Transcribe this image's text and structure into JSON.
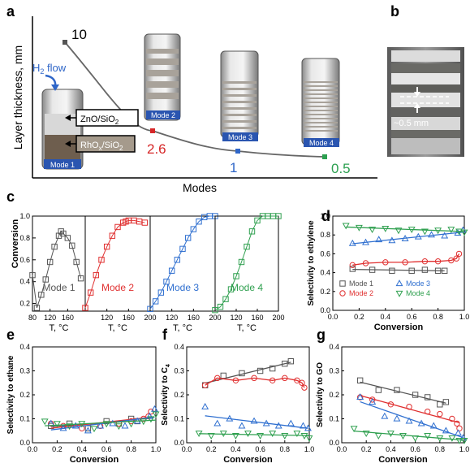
{
  "panels": {
    "a": "a",
    "b": "b",
    "c": "c",
    "d": "d",
    "e": "e",
    "f": "f",
    "g": "g"
  },
  "panel_a": {
    "ylabel": "Layer thickness, mm",
    "xlabel": "Modes",
    "h2_label": "H",
    "h2_sub": "2",
    "h2_rest": " flow",
    "zno_label": "ZnO/SiO",
    "zno_sub": "2",
    "rho_label": "RhO",
    "rho_sub": "x",
    "rho_rest": "/SiO",
    "rho_sub2": "2",
    "mode_tags": [
      "Mode 1",
      "Mode 2",
      "Mode 3",
      "Mode 4"
    ],
    "thickness_labels": [
      "10",
      "2.6",
      "1",
      "0.5"
    ],
    "thickness_colors": [
      "#555555",
      "#d62728",
      "#2f66c8",
      "#2ca050"
    ]
  },
  "panel_b": {
    "scale_label": "~0.5 mm"
  },
  "colors": {
    "mode1": "#555555",
    "mode2": "#e03030",
    "mode3": "#3070d0",
    "mode4": "#30a050"
  },
  "panel_c": {
    "ylabel": "Conversion",
    "xlabel": "T, °C",
    "yticks": [
      "0.2",
      "0.4",
      "0.6",
      "0.8",
      "1.0"
    ],
    "xticks": [
      "80",
      "120",
      "160",
      "200"
    ],
    "mode_labels": [
      "Mode 1",
      "Mode 2",
      "Mode 3",
      "Mode 4"
    ]
  },
  "legend": [
    "Mode 1",
    "Mode 2",
    "Mode 3",
    "Mode 4"
  ],
  "chart_data": [
    {
      "type": "line",
      "panel": "a",
      "ylabel": "Layer thickness, mm",
      "xlabel": "Modes",
      "categories": [
        "Mode 1",
        "Mode 2",
        "Mode 3",
        "Mode 4"
      ],
      "values": [
        10,
        2.6,
        1,
        0.5
      ]
    },
    {
      "type": "scatter",
      "panel": "c",
      "ylabel": "Conversion",
      "xlabel": "T, °C",
      "xlim": [
        80,
        200
      ],
      "ylim": [
        0.13,
        1.0
      ],
      "series": [
        {
          "name": "Mode 1",
          "x": [
            80,
            90,
            100,
            110,
            120,
            130,
            140,
            145,
            150,
            160,
            170,
            180,
            190
          ],
          "y": [
            0.46,
            0.16,
            0.28,
            0.42,
            0.58,
            0.72,
            0.82,
            0.86,
            0.84,
            0.8,
            0.73,
            0.58,
            0.43
          ]
        },
        {
          "name": "Mode 2",
          "x": [
            80,
            90,
            100,
            110,
            120,
            130,
            140,
            150,
            155,
            160,
            170,
            180,
            190
          ],
          "y": [
            0.16,
            0.3,
            0.46,
            0.6,
            0.72,
            0.82,
            0.9,
            0.94,
            0.95,
            0.96,
            0.96,
            0.95,
            0.94
          ]
        },
        {
          "name": "Mode 3",
          "x": [
            80,
            90,
            100,
            110,
            120,
            130,
            140,
            150,
            160,
            170,
            180,
            190,
            200
          ],
          "y": [
            0.15,
            0.22,
            0.3,
            0.4,
            0.5,
            0.6,
            0.7,
            0.8,
            0.88,
            0.95,
            0.99,
            1.0,
            1.0
          ]
        },
        {
          "name": "Mode 4",
          "x": [
            80,
            90,
            100,
            110,
            120,
            130,
            140,
            150,
            160,
            170,
            180,
            190,
            200
          ],
          "y": [
            0.14,
            0.17,
            0.24,
            0.33,
            0.45,
            0.58,
            0.72,
            0.86,
            0.96,
            1.0,
            1.0,
            1.0,
            1.0
          ]
        }
      ]
    },
    {
      "type": "scatter",
      "panel": "d",
      "ylabel": "Selectivity to ethylene",
      "xlabel": "Conversion",
      "xlim": [
        0.0,
        1.0
      ],
      "ylim": [
        0.0,
        1.0
      ],
      "series": [
        {
          "name": "Mode 1",
          "x": [
            0.15,
            0.3,
            0.45,
            0.6,
            0.7,
            0.8,
            0.85
          ],
          "y": [
            0.44,
            0.43,
            0.42,
            0.42,
            0.43,
            0.42,
            0.42
          ]
        },
        {
          "name": "Mode 2",
          "x": [
            0.15,
            0.25,
            0.4,
            0.55,
            0.7,
            0.8,
            0.9,
            0.94,
            0.96
          ],
          "y": [
            0.48,
            0.5,
            0.51,
            0.51,
            0.52,
            0.52,
            0.53,
            0.55,
            0.6
          ]
        },
        {
          "name": "Mode 3",
          "x": [
            0.15,
            0.25,
            0.35,
            0.45,
            0.55,
            0.65,
            0.75,
            0.85,
            0.95,
            0.99
          ],
          "y": [
            0.71,
            0.72,
            0.75,
            0.74,
            0.76,
            0.78,
            0.8,
            0.79,
            0.82,
            0.85
          ]
        },
        {
          "name": "Mode 4",
          "x": [
            0.1,
            0.2,
            0.3,
            0.4,
            0.5,
            0.6,
            0.7,
            0.8,
            0.9,
            0.96,
            1.0
          ],
          "y": [
            0.9,
            0.88,
            0.86,
            0.87,
            0.85,
            0.86,
            0.84,
            0.85,
            0.86,
            0.84,
            0.83
          ]
        }
      ]
    },
    {
      "type": "scatter",
      "panel": "e",
      "ylabel": "Selectivity to ethane",
      "xlabel": "Conversion",
      "xlim": [
        0.0,
        1.0
      ],
      "ylim": [
        0.0,
        0.4
      ],
      "series": [
        {
          "name": "Mode 1",
          "x": [
            0.15,
            0.3,
            0.45,
            0.6,
            0.7,
            0.8,
            0.85
          ],
          "y": [
            0.07,
            0.08,
            0.06,
            0.09,
            0.08,
            0.1,
            0.09
          ]
        },
        {
          "name": "Mode 2",
          "x": [
            0.15,
            0.25,
            0.4,
            0.55,
            0.7,
            0.8,
            0.9,
            0.94,
            0.96
          ],
          "y": [
            0.08,
            0.07,
            0.06,
            0.07,
            0.08,
            0.09,
            0.1,
            0.11,
            0.13
          ]
        },
        {
          "name": "Mode 3",
          "x": [
            0.15,
            0.25,
            0.35,
            0.45,
            0.55,
            0.65,
            0.75,
            0.85,
            0.95,
            0.99
          ],
          "y": [
            0.08,
            0.06,
            0.07,
            0.05,
            0.07,
            0.08,
            0.07,
            0.09,
            0.11,
            0.14
          ]
        },
        {
          "name": "Mode 4",
          "x": [
            0.1,
            0.2,
            0.3,
            0.4,
            0.5,
            0.6,
            0.7,
            0.8,
            0.9,
            0.96,
            1.0
          ],
          "y": [
            0.09,
            0.08,
            0.07,
            0.08,
            0.06,
            0.08,
            0.07,
            0.08,
            0.09,
            0.1,
            0.12
          ]
        }
      ]
    },
    {
      "type": "scatter",
      "panel": "f",
      "ylabel": "Selectivity to C",
      "xlabel": "Conversion",
      "xlim": [
        0.0,
        1.0
      ],
      "ylim": [
        0.0,
        0.4
      ],
      "series": [
        {
          "name": "Mode 1",
          "x": [
            0.15,
            0.3,
            0.45,
            0.6,
            0.7,
            0.8,
            0.85
          ],
          "y": [
            0.24,
            0.28,
            0.29,
            0.3,
            0.31,
            0.33,
            0.34
          ]
        },
        {
          "name": "Mode 2",
          "x": [
            0.15,
            0.25,
            0.4,
            0.55,
            0.7,
            0.8,
            0.9,
            0.94,
            0.96
          ],
          "y": [
            0.24,
            0.27,
            0.26,
            0.27,
            0.26,
            0.27,
            0.26,
            0.25,
            0.23
          ]
        },
        {
          "name": "Mode 3",
          "x": [
            0.15,
            0.25,
            0.35,
            0.45,
            0.55,
            0.65,
            0.75,
            0.85,
            0.95,
            0.99
          ],
          "y": [
            0.15,
            0.08,
            0.1,
            0.07,
            0.09,
            0.08,
            0.07,
            0.08,
            0.07,
            0.06
          ]
        },
        {
          "name": "Mode 4",
          "x": [
            0.1,
            0.2,
            0.3,
            0.4,
            0.5,
            0.6,
            0.7,
            0.8,
            0.9,
            0.96,
            1.0
          ],
          "y": [
            0.04,
            0.03,
            0.04,
            0.03,
            0.04,
            0.03,
            0.04,
            0.03,
            0.04,
            0.03,
            0.02
          ]
        }
      ]
    },
    {
      "type": "scatter",
      "panel": "g",
      "ylabel": "Selectivity to GO",
      "xlabel": "Conversion",
      "xlim": [
        0.0,
        1.0
      ],
      "ylim": [
        0.0,
        0.4
      ],
      "series": [
        {
          "name": "Mode 1",
          "x": [
            0.15,
            0.3,
            0.45,
            0.6,
            0.7,
            0.8,
            0.85
          ],
          "y": [
            0.26,
            0.22,
            0.22,
            0.2,
            0.19,
            0.16,
            0.17
          ]
        },
        {
          "name": "Mode 2",
          "x": [
            0.15,
            0.25,
            0.4,
            0.55,
            0.7,
            0.8,
            0.9,
            0.94,
            0.96
          ],
          "y": [
            0.19,
            0.18,
            0.16,
            0.15,
            0.13,
            0.12,
            0.1,
            0.08,
            0.06
          ]
        },
        {
          "name": "Mode 3",
          "x": [
            0.15,
            0.25,
            0.35,
            0.45,
            0.55,
            0.65,
            0.75,
            0.85,
            0.95,
            0.99
          ],
          "y": [
            0.19,
            0.17,
            0.11,
            0.1,
            0.09,
            0.08,
            0.07,
            0.05,
            0.04,
            0.02
          ]
        },
        {
          "name": "Mode 4",
          "x": [
            0.1,
            0.2,
            0.3,
            0.4,
            0.5,
            0.6,
            0.7,
            0.8,
            0.9,
            0.96,
            1.0
          ],
          "y": [
            0.06,
            0.04,
            0.03,
            0.04,
            0.03,
            0.02,
            0.03,
            0.02,
            0.02,
            0.01,
            0.01
          ]
        }
      ]
    }
  ],
  "axes_text": {
    "sel_ticks_d": [
      "0.0",
      "0.2",
      "0.4",
      "0.6",
      "0.8",
      "1.0"
    ],
    "sel_ticks": [
      "0.0",
      "0.1",
      "0.2",
      "0.3",
      "0.4"
    ],
    "conv_ticks": [
      "0.0",
      "0.2",
      "0.4",
      "0.6",
      "0.8",
      "1.0"
    ],
    "c4_sub": "4"
  }
}
